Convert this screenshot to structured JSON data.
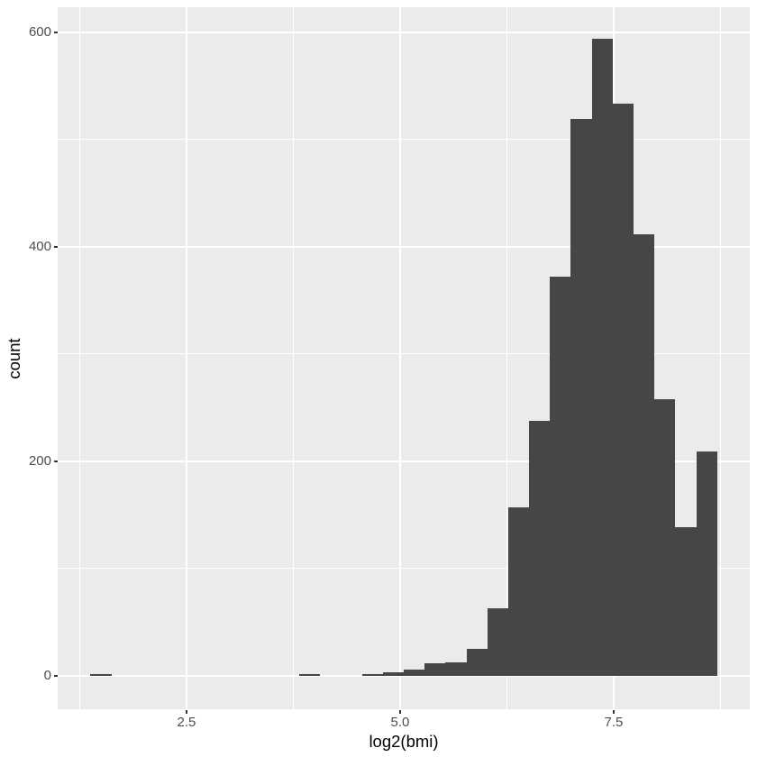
{
  "figure": {
    "x_axis_title": "log2(bmi)",
    "y_axis_title": "count"
  },
  "chart_data": {
    "type": "bar",
    "subtype": "histogram",
    "title": "",
    "xlabel": "log2(bmi)",
    "ylabel": "count",
    "bin_start": 1.375,
    "bin_width": 0.2445,
    "counts": [
      2,
      0,
      0,
      0,
      0,
      0,
      0,
      0,
      0,
      0,
      2,
      0,
      0,
      2,
      3,
      6,
      12,
      13,
      25,
      63,
      157,
      238,
      372,
      519,
      594,
      534,
      412,
      258,
      139,
      209
    ],
    "bars": [
      {
        "x_from": 1.375,
        "x_to": 1.62,
        "count": 2
      },
      {
        "x_from": 3.82,
        "x_to": 4.065,
        "count": 2
      },
      {
        "x_from": 4.554,
        "x_to": 4.798,
        "count": 2
      },
      {
        "x_from": 4.798,
        "x_to": 5.043,
        "count": 3
      },
      {
        "x_from": 5.043,
        "x_to": 5.287,
        "count": 6
      },
      {
        "x_from": 5.287,
        "x_to": 5.532,
        "count": 12
      },
      {
        "x_from": 5.532,
        "x_to": 5.776,
        "count": 13
      },
      {
        "x_from": 5.776,
        "x_to": 6.021,
        "count": 25
      },
      {
        "x_from": 6.021,
        "x_to": 6.265,
        "count": 63
      },
      {
        "x_from": 6.265,
        "x_to": 6.51,
        "count": 157
      },
      {
        "x_from": 6.51,
        "x_to": 6.754,
        "count": 238
      },
      {
        "x_from": 6.754,
        "x_to": 6.999,
        "count": 372
      },
      {
        "x_from": 6.999,
        "x_to": 7.243,
        "count": 519
      },
      {
        "x_from": 7.243,
        "x_to": 7.488,
        "count": 594
      },
      {
        "x_from": 7.488,
        "x_to": 7.732,
        "count": 534
      },
      {
        "x_from": 7.732,
        "x_to": 7.977,
        "count": 412
      },
      {
        "x_from": 7.977,
        "x_to": 8.221,
        "count": 258
      },
      {
        "x_from": 8.221,
        "x_to": 8.466,
        "count": 139
      },
      {
        "x_from": 8.466,
        "x_to": 8.71,
        "count": 209
      }
    ],
    "x_ticks": {
      "values": [
        2.5,
        5.0,
        7.5
      ],
      "labels": [
        "2.5",
        "5.0",
        "7.5"
      ]
    },
    "x_minor_ticks": [
      1.25,
      3.75,
      6.25,
      8.75
    ],
    "y_ticks": {
      "values": [
        0,
        200,
        400,
        600
      ],
      "labels": [
        "0",
        "200",
        "400",
        "600"
      ]
    },
    "y_minor_ticks": [
      100,
      300,
      500
    ],
    "xlim": [
      0.992,
      9.093
    ],
    "ylim": [
      -31.1,
      623.5
    ],
    "grid": true,
    "legend_position": "none",
    "colors": {
      "bar_fill": "#464646",
      "panel_background": "#EBEBEB",
      "grid_major": "#FFFFFF",
      "grid_minor": "#FFFFFF",
      "tick_label": "#4D4D4D",
      "axis_title": "#000000",
      "tick_mark": "#333333",
      "figure_background": "#FFFFFF"
    }
  }
}
